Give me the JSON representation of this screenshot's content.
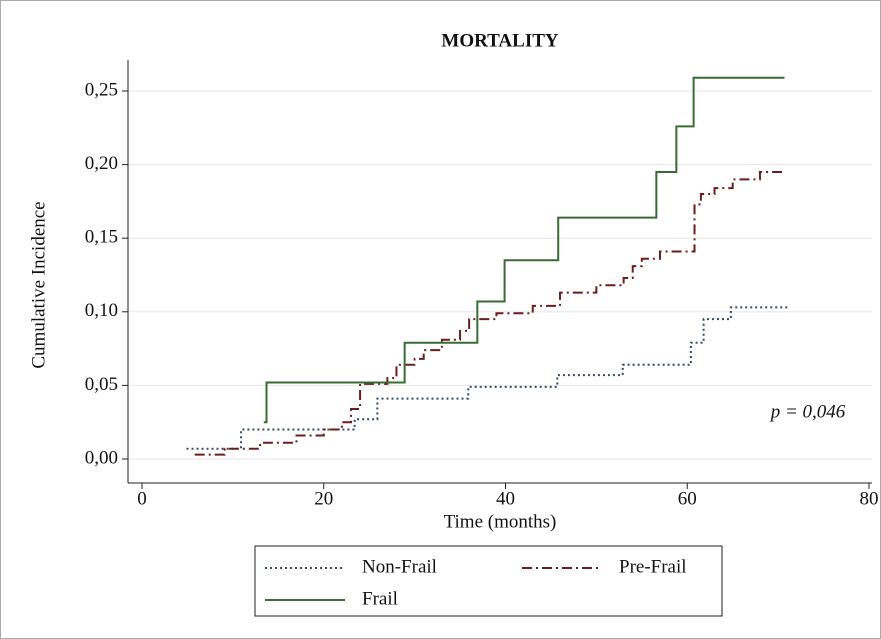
{
  "chart_data": {
    "type": "step",
    "title": "MORTALITY",
    "x_label": "Time (months)",
    "y_label": "Cumulative Incidence",
    "annotation": "p = 0,046",
    "xlim": [
      0,
      80
    ],
    "xticks": [
      0,
      20,
      40,
      60,
      80
    ],
    "ylim": [
      0,
      0.25
    ],
    "yticks": [
      {
        "value": 0,
        "label": "0,00"
      },
      {
        "value": 0.05,
        "label": "0,05"
      },
      {
        "value": 0.1,
        "label": "0,10"
      },
      {
        "value": 0.15,
        "label": "0,15"
      },
      {
        "value": 0.2,
        "label": "0,20"
      },
      {
        "value": 0.25,
        "label": "0,25"
      }
    ],
    "grid": true,
    "legend": "bottom",
    "series": [
      {
        "name": "Non-Frail",
        "color": "#2f4a66",
        "style": "dotted",
        "x": [
          4.9,
          10.9,
          23.4,
          25.9,
          35.9,
          45.7,
          52.9,
          60.4,
          61.8,
          64.8,
          71.2
        ],
        "values": [
          0.007,
          0.02,
          0.027,
          0.041,
          0.049,
          0.057,
          0.064,
          0.079,
          0.095,
          0.103,
          0.103
        ]
      },
      {
        "name": "Pre-Frail",
        "color": "#6b1d1d",
        "style": "dashdot",
        "x": [
          5.8,
          9.1,
          13,
          17,
          20,
          22,
          23,
          24,
          27,
          28,
          30,
          31,
          33,
          35,
          36,
          39,
          43,
          46,
          50,
          53,
          54,
          55,
          57,
          60.8,
          61.5,
          63,
          65,
          68,
          70.7
        ],
        "values": [
          0.003,
          0.007,
          0.011,
          0.016,
          0.02,
          0.025,
          0.034,
          0.051,
          0.055,
          0.064,
          0.068,
          0.074,
          0.081,
          0.087,
          0.095,
          0.099,
          0.104,
          0.113,
          0.118,
          0.123,
          0.131,
          0.136,
          0.141,
          0.173,
          0.18,
          0.184,
          0.19,
          0.195,
          0.195
        ]
      },
      {
        "name": "Frail",
        "color": "#3a6b35",
        "style": "solid",
        "x": [
          13.4,
          13.7,
          28.9,
          36.9,
          39.9,
          45.8,
          56.6,
          58.8,
          60.7,
          70.7
        ],
        "values": [
          0.025,
          0.052,
          0.079,
          0.107,
          0.135,
          0.164,
          0.195,
          0.226,
          0.259,
          0.259
        ]
      }
    ]
  }
}
